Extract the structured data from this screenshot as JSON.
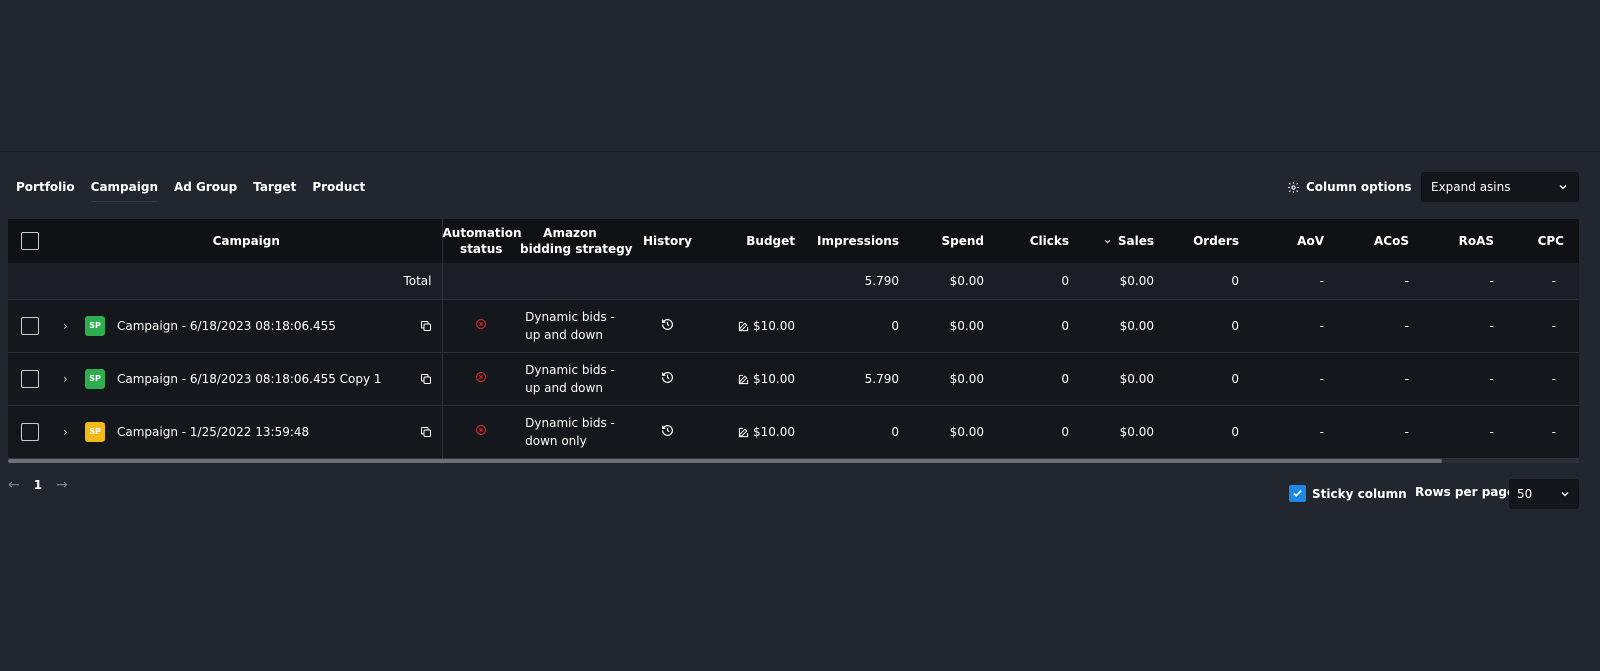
{
  "tabs": [
    "Portfolio",
    "Campaign",
    "Ad Group",
    "Target",
    "Product"
  ],
  "active_tab": "Campaign",
  "column_options_label": "Column options",
  "expand_select": {
    "value": "Expand asins"
  },
  "columns": {
    "campaign": "Campaign",
    "automation_status": [
      "Automation",
      "status"
    ],
    "bidding_strategy": [
      "Amazon",
      "bidding strategy"
    ],
    "history": "History",
    "budget": "Budget",
    "impressions": "Impressions",
    "spend": "Spend",
    "clicks": "Clicks",
    "sales": "Sales",
    "orders": "Orders",
    "aov": "AoV",
    "acos": "ACoS",
    "roas": "RoAS",
    "cpc": "CPC"
  },
  "total_row": {
    "label": "Total",
    "impressions": "5.790",
    "spend": "$0.00",
    "clicks": "0",
    "sales": "$0.00",
    "orders": "0",
    "aov": "-",
    "acos": "-",
    "roas": "-",
    "cpc": "-"
  },
  "rows": [
    {
      "badge": "SP",
      "badge_color": "#2eae4f",
      "name": "Campaign - 6/18/2023 08:18:06.455",
      "bidding": [
        "Dynamic bids -",
        "up and down"
      ],
      "budget": "$10.00",
      "impressions": "0",
      "spend": "$0.00",
      "clicks": "0",
      "sales": "$0.00",
      "orders": "0",
      "aov": "-",
      "acos": "-",
      "roas": "-",
      "cpc": "-"
    },
    {
      "badge": "SP",
      "badge_color": "#2eae4f",
      "name": "Campaign - 6/18/2023 08:18:06.455 Copy 1",
      "bidding": [
        "Dynamic bids -",
        "up and down"
      ],
      "budget": "$10.00",
      "impressions": "5.790",
      "spend": "$0.00",
      "clicks": "0",
      "sales": "$0.00",
      "orders": "0",
      "aov": "-",
      "acos": "-",
      "roas": "-",
      "cpc": "-"
    },
    {
      "badge": "SP",
      "badge_color": "#f1b81a",
      "name": "Campaign - 1/25/2022 13:59:48",
      "bidding": [
        "Dynamic bids -",
        "down only"
      ],
      "budget": "$10.00",
      "impressions": "0",
      "spend": "$0.00",
      "clicks": "0",
      "sales": "$0.00",
      "orders": "0",
      "aov": "-",
      "acos": "-",
      "roas": "-",
      "cpc": "-"
    }
  ],
  "pagination": {
    "current_page": "1"
  },
  "sticky_column_label": "Sticky column",
  "rows_per_page_label": "Rows per page",
  "rows_per_page_value": "50",
  "colors": {
    "status_stop": "#c62828",
    "checkbox_accent": "#1e88e5"
  }
}
